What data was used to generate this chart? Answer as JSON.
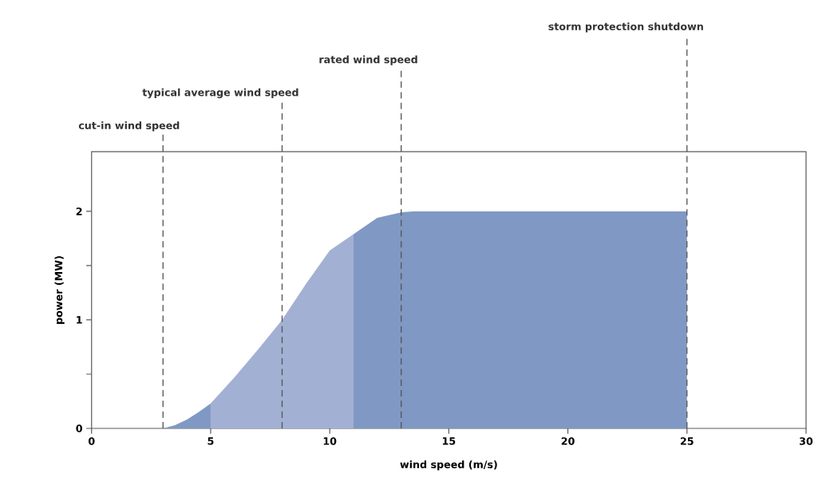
{
  "chart_data": {
    "type": "area",
    "xlabel": "wind speed (m/s)",
    "ylabel": "power (MW)",
    "xlim": [
      0,
      30
    ],
    "ylim": [
      0,
      2.55
    ],
    "xticks": [
      0,
      5,
      10,
      15,
      20,
      25,
      30
    ],
    "yticks": [
      0,
      {
        "value": 0.5,
        "label": null
      },
      1,
      {
        "value": 1.5,
        "label": null
      },
      2
    ],
    "grid": false,
    "series": [
      {
        "color": "#8098c4",
        "x": [
          3,
          3.5,
          4,
          4.5,
          5
        ],
        "values": [
          0,
          0.03,
          0.08,
          0.15,
          0.23
        ]
      },
      {
        "color": "#a2b0d3",
        "x": [
          5,
          6,
          7,
          8,
          9,
          10,
          11
        ],
        "values": [
          0.23,
          0.47,
          0.73,
          1.0,
          1.33,
          1.64,
          1.79
        ]
      },
      {
        "color": "#8098c4",
        "x": [
          11,
          12,
          13,
          13.5,
          25
        ],
        "values": [
          1.79,
          1.94,
          1.99,
          2.0,
          2.0
        ]
      }
    ],
    "ref_lines": [
      {
        "axis": "x",
        "value": 3,
        "label": "cut-in wind speed",
        "line_style": "dashed",
        "color": "#555555"
      },
      {
        "axis": "x",
        "value": 8,
        "label": "typical average wind speed",
        "line_style": "dashed",
        "color": "#555555"
      },
      {
        "axis": "x",
        "value": 13,
        "label": "rated wind speed",
        "line_style": "dashed",
        "color": "#555555"
      },
      {
        "axis": "x",
        "value": 25,
        "label": "storm protection shutdown",
        "line_style": "dashed",
        "color": "#555555"
      }
    ]
  }
}
